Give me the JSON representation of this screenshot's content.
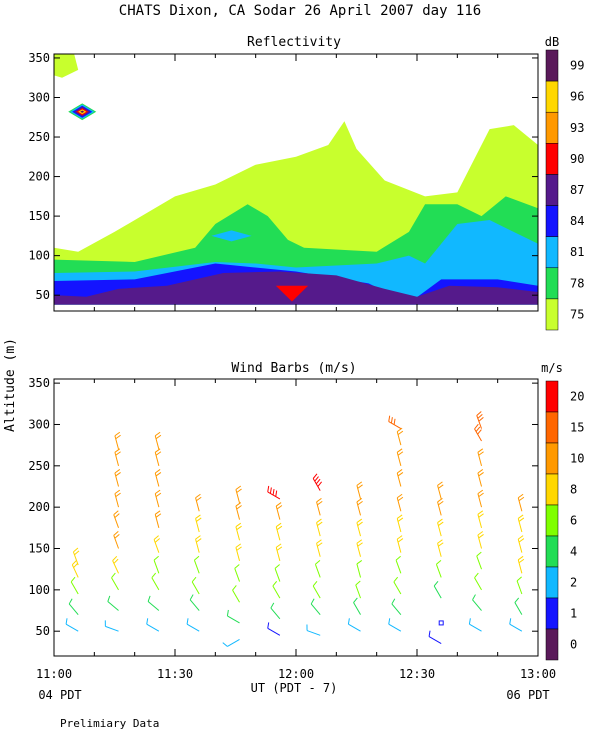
{
  "title": "CHATS Dixon, CA  Sodar  26 April 2007  day 116",
  "shared": {
    "ylabel": "Altitude (m)",
    "xlabel": "UT  (PDT - 7)",
    "x_ticks": [
      "11:00",
      "11:30",
      "12:00",
      "12:30",
      "13:00"
    ],
    "x_ticks_minutes": [
      660,
      690,
      720,
      750,
      780
    ],
    "bottom_left_label": "04 PDT",
    "bottom_right_label": "06 PDT",
    "footer": "Prelimiary Data"
  },
  "chart_data": [
    {
      "type": "heatmap",
      "title": "Reflectivity",
      "colorbar_label": "dB",
      "colorbar_ticks": [
        "99",
        "96",
        "93",
        "90",
        "87",
        "84",
        "81",
        "78",
        "75"
      ],
      "colorbar_colors": [
        "#5a1a5a",
        "#ffd700",
        "#ff9900",
        "#ff0000",
        "#551a8b",
        "#1414ff",
        "#11b8ff",
        "#22dd55",
        "#c8ff2d"
      ],
      "y_ticks": [
        50,
        100,
        150,
        200,
        250,
        300,
        350
      ],
      "ylim": [
        30,
        355
      ],
      "xlim": [
        "11:00",
        "13:00"
      ],
      "bands": [
        {
          "level": 75,
          "color": "#c8ff2d",
          "top": [
            [
              660,
              110
            ],
            [
              666,
              105
            ],
            [
              675,
              130
            ],
            [
              690,
              175
            ],
            [
              700,
              190
            ],
            [
              710,
              215
            ],
            [
              720,
              225
            ],
            [
              728,
              240
            ],
            [
              732,
              270
            ],
            [
              735,
              235
            ],
            [
              742,
              195
            ],
            [
              752,
              175
            ],
            [
              760,
              180
            ],
            [
              768,
              260
            ],
            [
              774,
              265
            ],
            [
              780,
              240
            ],
            [
              780,
              38
            ],
            [
              660,
              38
            ]
          ]
        },
        {
          "level": 78,
          "color": "#22dd55",
          "top": [
            [
              660,
              95
            ],
            [
              680,
              92
            ],
            [
              695,
              110
            ],
            [
              700,
              140
            ],
            [
              708,
              165
            ],
            [
              713,
              150
            ],
            [
              718,
              120
            ],
            [
              722,
              110
            ],
            [
              740,
              105
            ],
            [
              748,
              130
            ],
            [
              752,
              165
            ],
            [
              760,
              165
            ],
            [
              766,
              150
            ],
            [
              772,
              175
            ],
            [
              780,
              160
            ],
            [
              780,
              38
            ],
            [
              660,
              38
            ]
          ]
        },
        {
          "level": 81,
          "color": "#11b8ff",
          "top": [
            [
              660,
              78
            ],
            [
              680,
              80
            ],
            [
              700,
              92
            ],
            [
              710,
              90
            ],
            [
              720,
              85
            ],
            [
              740,
              90
            ],
            [
              748,
              100
            ],
            [
              752,
              90
            ],
            [
              760,
              140
            ],
            [
              768,
              145
            ],
            [
              776,
              125
            ],
            [
              780,
              115
            ],
            [
              780,
              38
            ],
            [
              660,
              38
            ]
          ]
        },
        {
          "level": 84,
          "color": "#1414ff",
          "top": [
            [
              660,
              68
            ],
            [
              680,
              70
            ],
            [
              700,
              90
            ],
            [
              720,
              80
            ],
            [
              738,
              65
            ],
            [
              748,
              40
            ],
            [
              756,
              70
            ],
            [
              770,
              70
            ],
            [
              780,
              62
            ],
            [
              780,
              38
            ],
            [
              660,
              38
            ]
          ]
        },
        {
          "level": 87,
          "color": "#551a8b",
          "top": [
            [
              660,
              50
            ],
            [
              668,
              48
            ],
            [
              676,
              58
            ],
            [
              688,
              62
            ],
            [
              702,
              78
            ],
            [
              716,
              80
            ],
            [
              730,
              75
            ],
            [
              742,
              58
            ],
            [
              750,
              48
            ],
            [
              758,
              62
            ],
            [
              770,
              60
            ],
            [
              780,
              54
            ],
            [
              780,
              38
            ],
            [
              660,
              38
            ]
          ]
        }
      ],
      "patches": [
        {
          "level": 90,
          "color": "#ff0000",
          "points": [
            [
              715,
              62
            ],
            [
              723,
              62
            ],
            [
              719,
              42
            ]
          ]
        },
        {
          "level": 81,
          "color": "#11b8ff",
          "points": [
            [
              699,
              125
            ],
            [
              704,
              132
            ],
            [
              709,
              125
            ],
            [
              704,
              118
            ]
          ]
        }
      ],
      "peak": {
        "x": 660,
        "y": 282,
        "levels": [
          "#22dd55",
          "#11b8ff",
          "#1414ff",
          "#551a8b",
          "#ff0000",
          "#ffd700",
          "#5a1a5a"
        ]
      }
    },
    {
      "type": "scatter",
      "title": "Wind Barbs (m/s)",
      "colorbar_label": "m/s",
      "colorbar_ticks": [
        "20",
        "15",
        "10",
        "8",
        "6",
        "4",
        "2",
        "1",
        "0"
      ],
      "colorbar_colors": [
        "#ff0000",
        "#ff6600",
        "#ff9900",
        "#ffd700",
        "#7fff00",
        "#22dd55",
        "#11b8ff",
        "#1414ff",
        "#5a1a5a"
      ],
      "y_ticks": [
        50,
        100,
        150,
        200,
        250,
        300,
        350
      ],
      "ylim": [
        20,
        355
      ],
      "xlim": [
        "11:00",
        "13:00"
      ],
      "columns": [
        {
          "x": 666,
          "barbs": [
            [
              50,
              2,
              300
            ],
            [
              70,
              4,
              320
            ],
            [
              95,
              6,
              330
            ],
            [
              115,
              8,
              335
            ],
            [
              130,
              8,
              340
            ]
          ]
        },
        {
          "x": 676,
          "barbs": [
            [
              50,
              2,
              290
            ],
            [
              75,
              4,
              310
            ],
            [
              100,
              6,
              330
            ],
            [
              120,
              8,
              335
            ],
            [
              150,
              10,
              340
            ],
            [
              175,
              10,
              340
            ],
            [
              200,
              10,
              345
            ],
            [
              225,
              12,
              345
            ],
            [
              250,
              12,
              345
            ],
            [
              270,
              12,
              345
            ]
          ]
        },
        {
          "x": 686,
          "barbs": [
            [
              50,
              2,
              300
            ],
            [
              75,
              4,
              310
            ],
            [
              100,
              6,
              330
            ],
            [
              120,
              6,
              340
            ],
            [
              145,
              8,
              340
            ],
            [
              175,
              10,
              345
            ],
            [
              200,
              10,
              345
            ],
            [
              225,
              12,
              345
            ],
            [
              250,
              12,
              345
            ],
            [
              270,
              12,
              345
            ]
          ]
        },
        {
          "x": 696,
          "barbs": [
            [
              50,
              2,
              300
            ],
            [
              75,
              4,
              320
            ],
            [
              95,
              6,
              330
            ],
            [
              120,
              6,
              340
            ],
            [
              145,
              8,
              345
            ],
            [
              170,
              8,
              345
            ],
            [
              195,
              10,
              345
            ]
          ]
        },
        {
          "x": 706,
          "barbs": [
            [
              40,
              2,
              240
            ],
            [
              60,
              4,
              300
            ],
            [
              85,
              6,
              330
            ],
            [
              110,
              6,
              340
            ],
            [
              135,
              8,
              345
            ],
            [
              160,
              8,
              345
            ],
            [
              185,
              10,
              345
            ],
            [
              205,
              10,
              345
            ]
          ]
        },
        {
          "x": 716,
          "barbs": [
            [
              45,
              1,
              300
            ],
            [
              65,
              4,
              320
            ],
            [
              90,
              6,
              330
            ],
            [
              110,
              6,
              340
            ],
            [
              135,
              8,
              345
            ],
            [
              160,
              8,
              345
            ],
            [
              185,
              10,
              345
            ],
            [
              210,
              20,
              300
            ]
          ]
        },
        {
          "x": 726,
          "barbs": [
            [
              45,
              2,
              290
            ],
            [
              70,
              4,
              320
            ],
            [
              90,
              6,
              330
            ],
            [
              115,
              6,
              340
            ],
            [
              140,
              8,
              345
            ],
            [
              165,
              8,
              345
            ],
            [
              190,
              10,
              345
            ],
            [
              220,
              20,
              330
            ]
          ]
        },
        {
          "x": 736,
          "barbs": [
            [
              50,
              2,
              300
            ],
            [
              70,
              4,
              330
            ],
            [
              90,
              6,
              340
            ],
            [
              115,
              6,
              345
            ],
            [
              140,
              8,
              345
            ],
            [
              165,
              8,
              345
            ],
            [
              190,
              10,
              345
            ],
            [
              210,
              10,
              345
            ]
          ]
        },
        {
          "x": 746,
          "barbs": [
            [
              50,
              2,
              300
            ],
            [
              70,
              4,
              320
            ],
            [
              95,
              6,
              330
            ],
            [
              120,
              6,
              340
            ],
            [
              145,
              8,
              345
            ],
            [
              170,
              8,
              345
            ],
            [
              195,
              10,
              345
            ],
            [
              225,
              12,
              345
            ],
            [
              250,
              12,
              345
            ],
            [
              275,
              12,
              345
            ],
            [
              295,
              15,
              300
            ]
          ]
        },
        {
          "x": 756,
          "barbs": [
            [
              35,
              1,
              300
            ],
            [
              60,
              1,
              0
            ],
            [
              90,
              4,
              330
            ],
            [
              115,
              6,
              340
            ],
            [
              140,
              8,
              345
            ],
            [
              165,
              8,
              345
            ],
            [
              190,
              10,
              345
            ],
            [
              210,
              10,
              345
            ]
          ]
        },
        {
          "x": 766,
          "barbs": [
            [
              50,
              2,
              300
            ],
            [
              75,
              4,
              320
            ],
            [
              100,
              6,
              330
            ],
            [
              125,
              6,
              340
            ],
            [
              150,
              8,
              345
            ],
            [
              175,
              8,
              345
            ],
            [
              200,
              10,
              345
            ],
            [
              225,
              12,
              345
            ],
            [
              250,
              12,
              345
            ],
            [
              280,
              15,
              330
            ],
            [
              295,
              15,
              340
            ]
          ]
        },
        {
          "x": 776,
          "barbs": [
            [
              50,
              2,
              300
            ],
            [
              70,
              4,
              330
            ],
            [
              95,
              6,
              340
            ],
            [
              120,
              8,
              345
            ],
            [
              145,
              8,
              345
            ],
            [
              170,
              8,
              345
            ],
            [
              195,
              10,
              345
            ]
          ]
        }
      ]
    }
  ]
}
